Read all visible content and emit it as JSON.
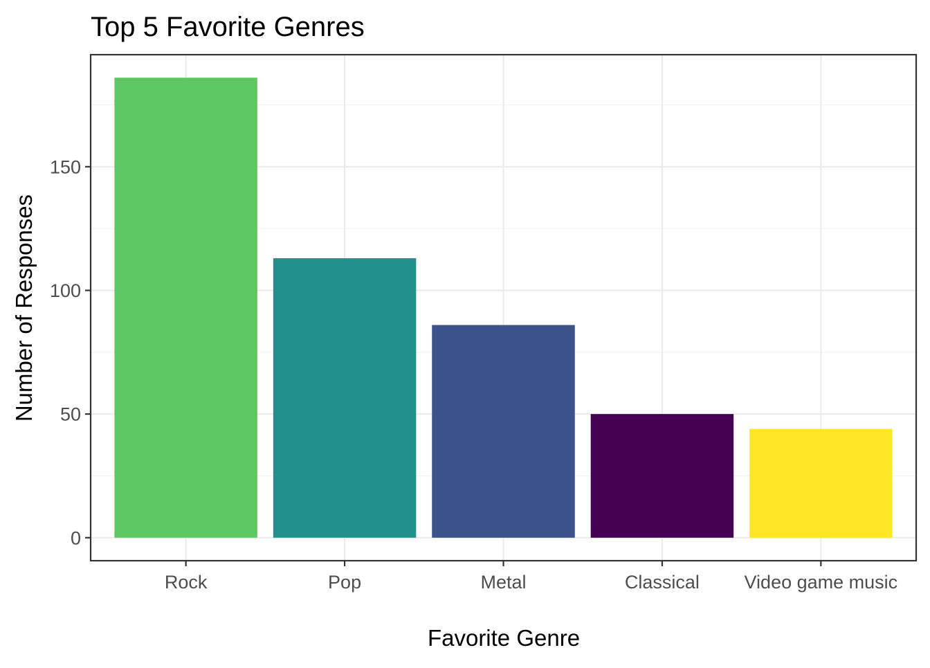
{
  "chart_data": {
    "type": "bar",
    "title": "Top 5 Favorite Genres",
    "xlabel": "Favorite Genre",
    "ylabel": "Number of Responses",
    "categories": [
      "Rock",
      "Pop",
      "Metal",
      "Classical",
      "Video game music"
    ],
    "values": [
      186,
      113,
      86,
      50,
      44
    ],
    "colors": [
      "#5DC863",
      "#21908C",
      "#3B528B",
      "#440154",
      "#FDE725"
    ],
    "yticks": [
      0,
      50,
      100,
      150
    ],
    "ylim": [
      -9.3,
      195.3
    ],
    "grid": true,
    "legend": "none"
  }
}
